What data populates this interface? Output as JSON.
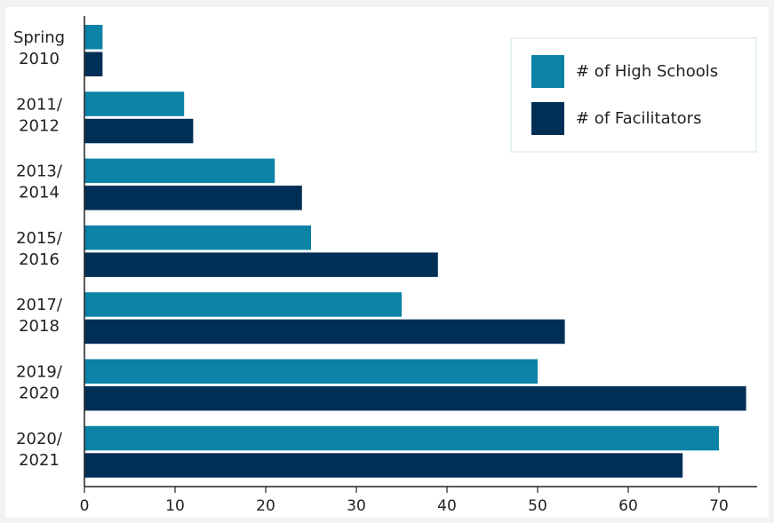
{
  "chart_data": {
    "type": "bar",
    "orientation": "horizontal",
    "title": "",
    "categories": [
      [
        "Spring",
        "2010"
      ],
      [
        "2011/",
        "2012"
      ],
      [
        "2013/",
        "2014"
      ],
      [
        "2015/",
        "2016"
      ],
      [
        "2017/",
        "2018"
      ],
      [
        "2019/",
        "2020"
      ],
      [
        "2020/",
        "2021"
      ]
    ],
    "series": [
      {
        "name": "# of High Schools",
        "color": "#0b82a6",
        "values": [
          2,
          11,
          21,
          25,
          35,
          50,
          70
        ]
      },
      {
        "name": "# of Facilitators",
        "color": "#002f56",
        "values": [
          2,
          12,
          24,
          39,
          53,
          73,
          66
        ]
      }
    ],
    "xticks": [
      0,
      10,
      20,
      30,
      40,
      50,
      60,
      70
    ],
    "xlim": [
      0,
      74
    ],
    "xlabel": "",
    "ylabel": "",
    "grid": false,
    "legend_position": "top-right"
  }
}
